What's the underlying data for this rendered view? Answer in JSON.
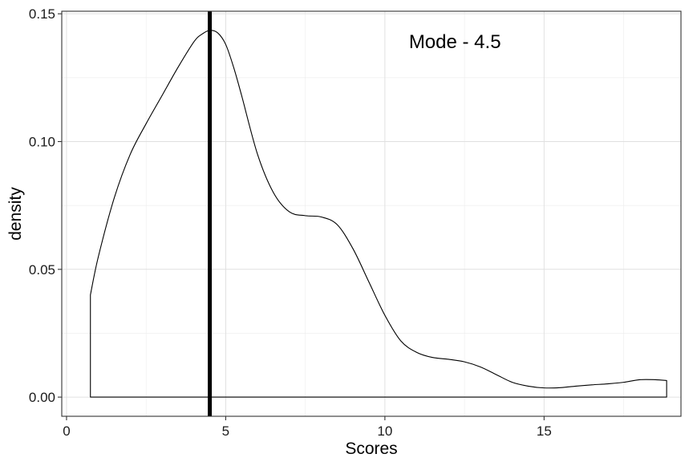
{
  "chart_data": {
    "type": "area",
    "title": "",
    "xlabel": "Scores",
    "ylabel": "density",
    "xlim": [
      -0.15,
      19.3
    ],
    "ylim": [
      -0.0075,
      0.151
    ],
    "x_ticks": [
      0,
      5,
      10,
      15
    ],
    "x_tick_labels": [
      "0",
      "5",
      "10",
      "15"
    ],
    "y_ticks": [
      0.0,
      0.05,
      0.1,
      0.15
    ],
    "y_tick_labels": [
      "0.00",
      "0.05",
      "0.10",
      "0.15"
    ],
    "grid": true,
    "legend": "none",
    "series": [
      {
        "x": [
          0.75,
          0.75,
          1.0,
          1.5,
          2.0,
          2.5,
          3.0,
          3.5,
          4.0,
          4.25,
          4.5,
          4.75,
          5.0,
          5.25,
          5.5,
          6.0,
          6.5,
          7.0,
          7.5,
          8.0,
          8.5,
          9.0,
          9.5,
          10.0,
          10.5,
          11.0,
          11.5,
          12.0,
          12.5,
          13.0,
          13.5,
          14.0,
          14.5,
          15.0,
          15.5,
          16.0,
          16.5,
          17.0,
          17.5,
          18.0,
          18.5,
          18.85,
          18.85
        ],
        "y": [
          0.0,
          0.04,
          0.055,
          0.078,
          0.095,
          0.107,
          0.118,
          0.129,
          0.139,
          0.142,
          0.1435,
          0.1425,
          0.138,
          0.129,
          0.118,
          0.095,
          0.08,
          0.0725,
          0.071,
          0.0705,
          0.0675,
          0.058,
          0.045,
          0.032,
          0.022,
          0.0175,
          0.0155,
          0.0148,
          0.0138,
          0.0118,
          0.0088,
          0.0058,
          0.0043,
          0.0036,
          0.0037,
          0.0043,
          0.0048,
          0.0052,
          0.0058,
          0.0068,
          0.0068,
          0.0065,
          0.0
        ]
      }
    ],
    "vline": {
      "x": 4.5
    },
    "annotations": [
      {
        "text": "Mode - 4.5",
        "x": 12.2,
        "y": 0.139
      }
    ]
  }
}
